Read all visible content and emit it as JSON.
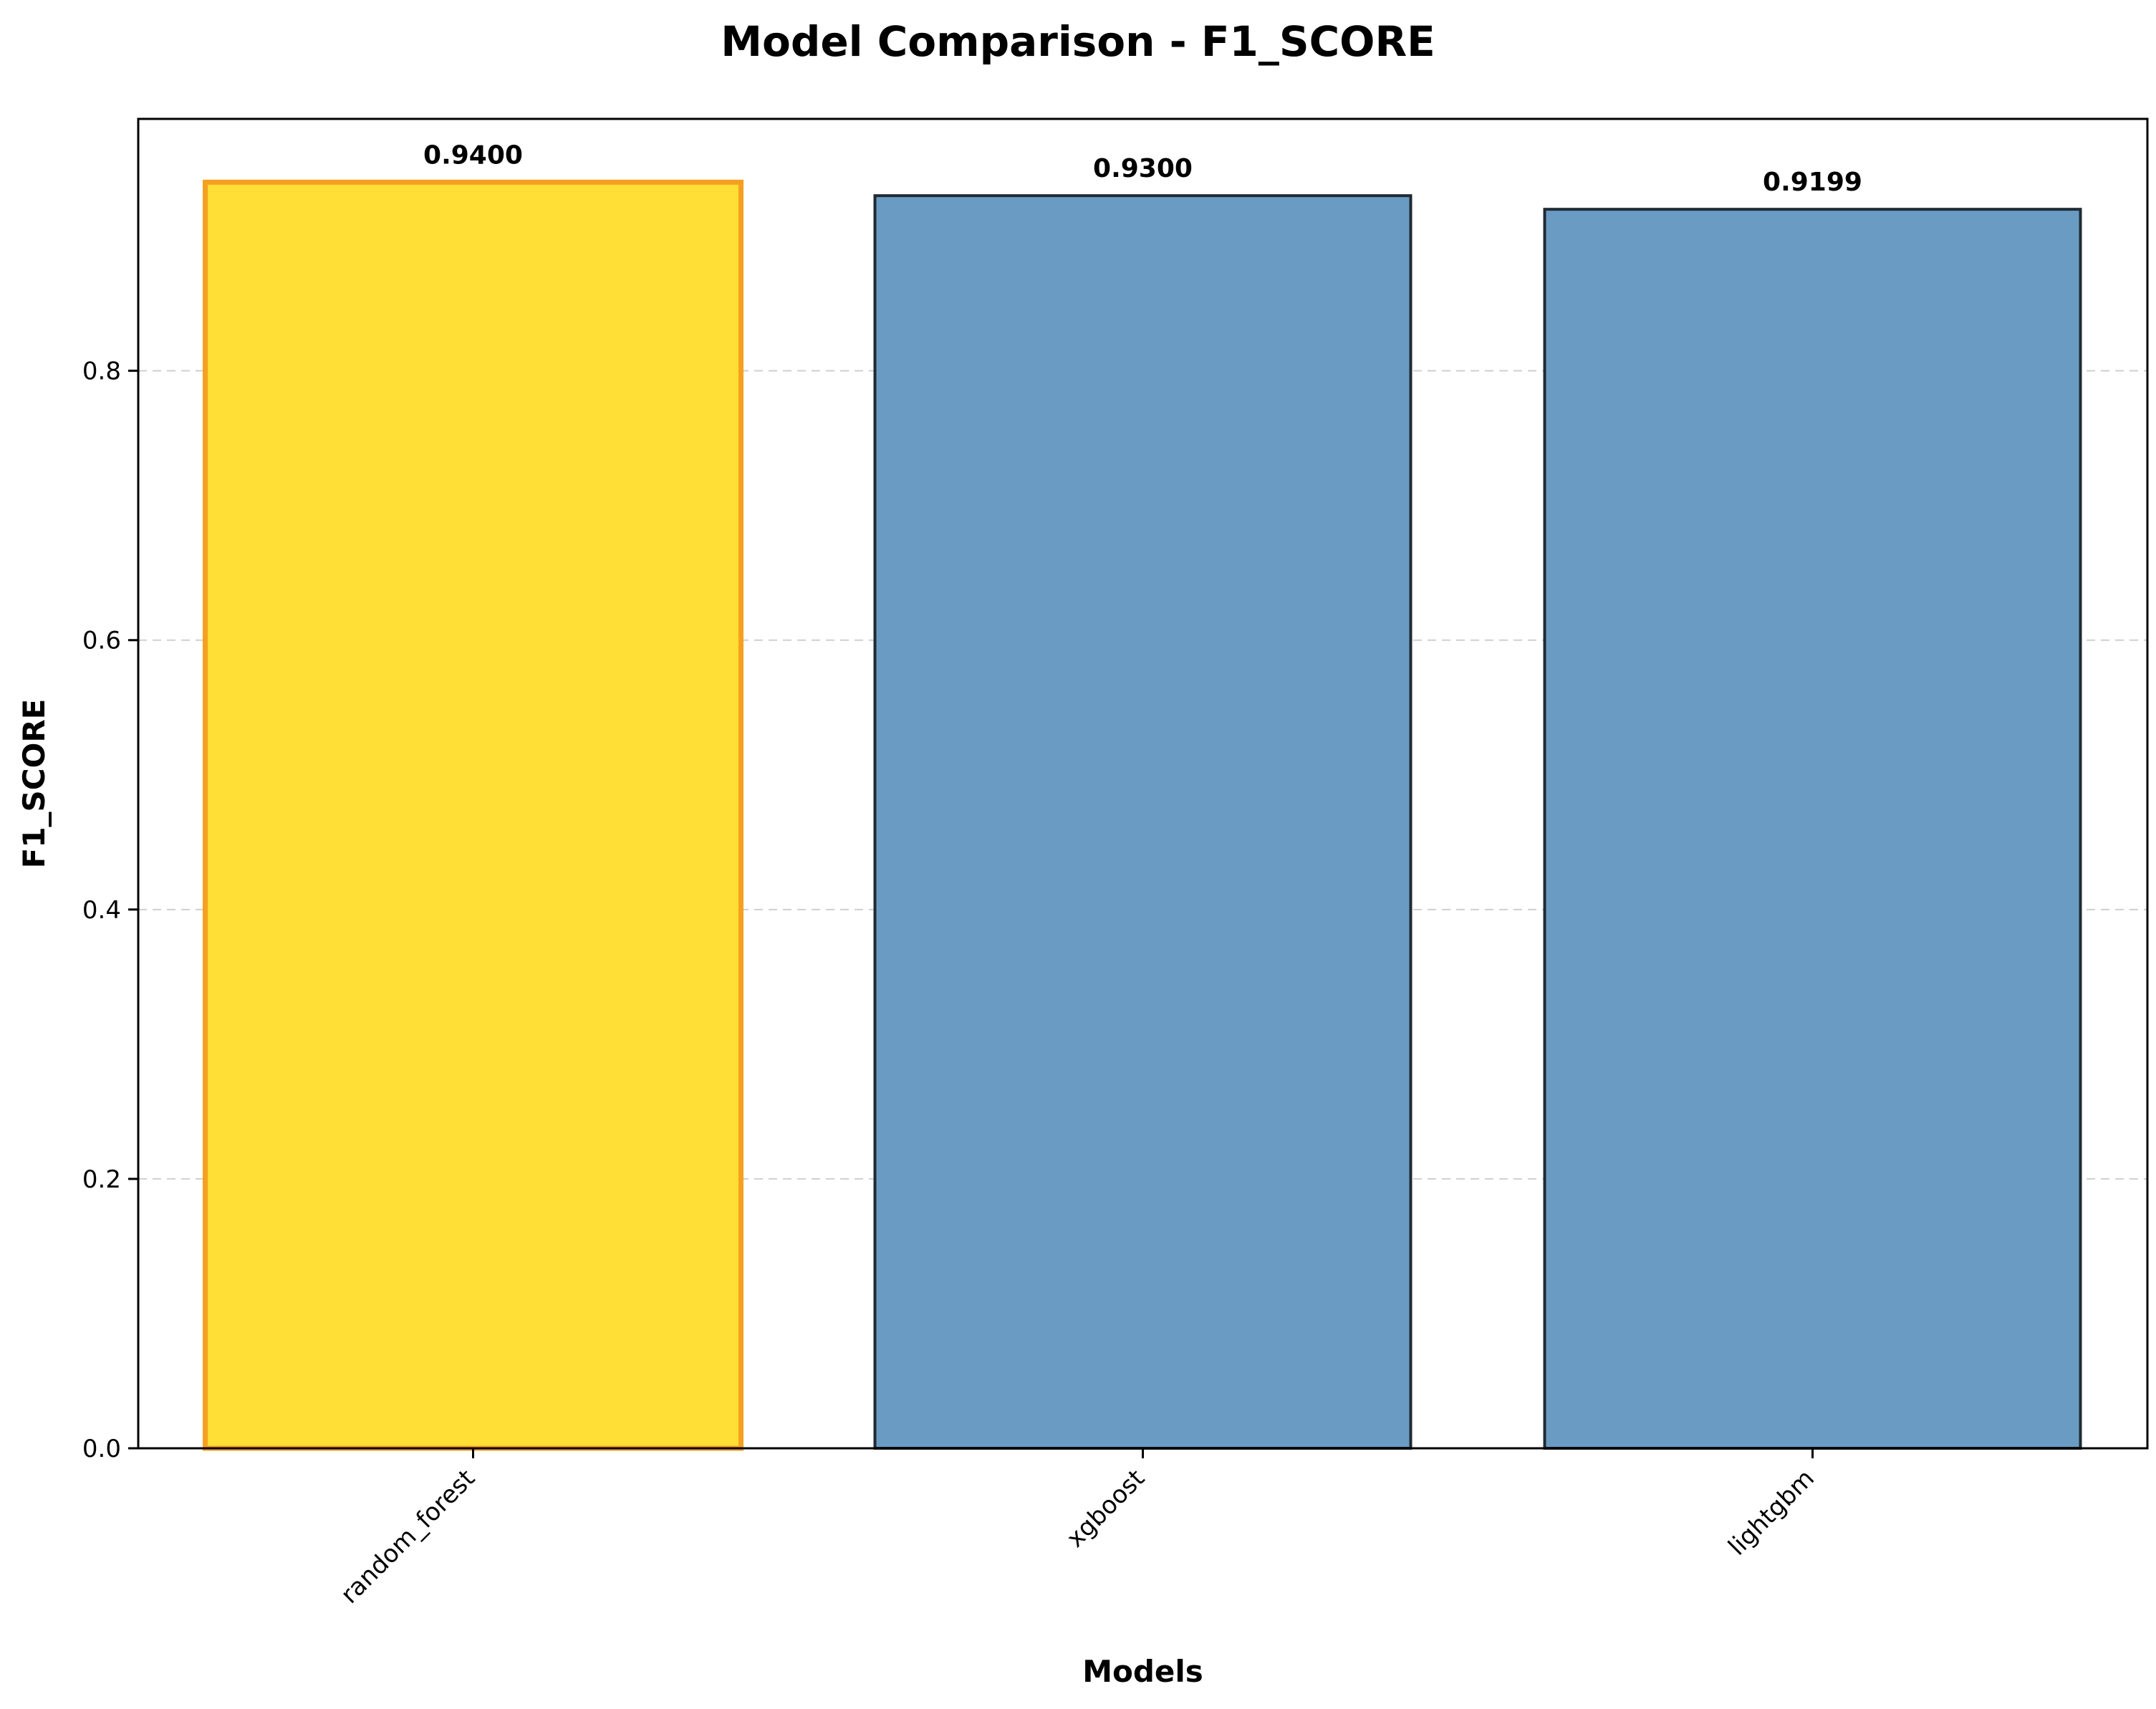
{
  "chart_data": {
    "type": "bar",
    "title": "Model Comparison - F1_SCORE",
    "xlabel": "Models",
    "ylabel": "F1_SCORE",
    "categories": [
      "random_forest",
      "xgboost",
      "lightgbm"
    ],
    "values": [
      0.94,
      0.93,
      0.9199
    ],
    "value_labels": [
      "0.9400",
      "0.9300",
      "0.9199"
    ],
    "ylim": [
      0,
      0.987
    ],
    "yticks": [
      0.0,
      0.2,
      0.4,
      0.6,
      0.8
    ],
    "ytick_labels": [
      "0.0",
      "0.2",
      "0.4",
      "0.6",
      "0.8"
    ],
    "grid": "y-dashed",
    "legend": "none",
    "colors": {
      "best_fill": "#FFDE35",
      "best_edge": "#F5A020",
      "bar_fill": "#6A9BC3",
      "bar_edge": "#1f2a33"
    },
    "highlight_index": 0
  }
}
